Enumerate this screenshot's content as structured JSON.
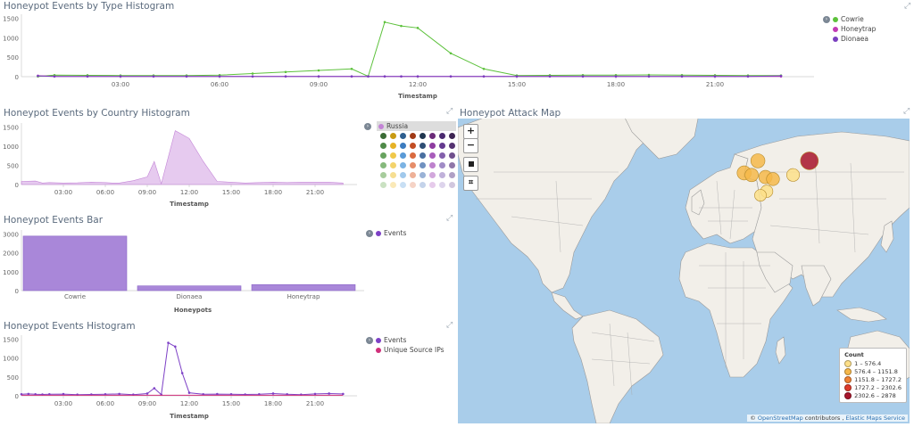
{
  "colors": {
    "cowrie": "#5cc13b",
    "honeytrap": "#c23ab4",
    "dionaea": "#7a3fbf",
    "russia": "#c384d6",
    "bar": "#a987d9",
    "events": "#7d40c6",
    "unique": "#d02f7a"
  },
  "panel1": {
    "title": "Honeypot Events by Type Histogram",
    "xlabel": "Timestamp",
    "legend": [
      {
        "label": "Cowrie",
        "color": "#5cc13b"
      },
      {
        "label": "Honeytrap",
        "color": "#c23ab4"
      },
      {
        "label": "Dionaea",
        "color": "#7a3fbf"
      }
    ]
  },
  "panel2": {
    "title": "Honeypot Events by Country Histogram",
    "xlabel": "Timestamp",
    "legend_label": "Russia",
    "palette": [
      "#3a6b35",
      "#c89a12",
      "#2d5e8f",
      "#a03a16",
      "#20364f",
      "#6b2b79",
      "#4a2a6f",
      "#3d2552",
      "#4f8a48",
      "#e6b226",
      "#3d7cbf",
      "#c24e24",
      "#2e4e75",
      "#8e3ca0",
      "#643a8f",
      "#553371",
      "#68a35f",
      "#f0c84a",
      "#5a9ad6",
      "#d96b40",
      "#4a6fa0",
      "#a85dbb",
      "#8360ac",
      "#70508d",
      "#86b97c",
      "#f3d36c",
      "#7cb3e3",
      "#e58d6a",
      "#7091c0",
      "#be82cd",
      "#a08bc6",
      "#8f76a8",
      "#a7cc9c",
      "#f6de92",
      "#a1c9ec",
      "#eeb198",
      "#9ab2d6",
      "#d2a7dc",
      "#c0b1da",
      "#b0a0c5",
      "#cae1c2",
      "#fae9b8",
      "#c8dff4",
      "#f5d3c6",
      "#c4d3ea",
      "#e6cbeb",
      "#ddd4ec",
      "#d1c7de"
    ]
  },
  "panel3": {
    "title": "Honeypot Events Bar",
    "xlabel": "Honeypots",
    "legend_label": "Events"
  },
  "panel4": {
    "title": "Honeypot Events Histogram",
    "xlabel": "Timestamp",
    "legend": [
      {
        "label": "Events",
        "color": "#7d40c6"
      },
      {
        "label": "Unique Source IPs",
        "color": "#d02f7a"
      }
    ]
  },
  "map": {
    "title": "Honeypot Attack Map",
    "legend_title": "Count",
    "legend": [
      {
        "label": "1 – 576.4",
        "color": "#fde08a"
      },
      {
        "label": "576.4 – 1151.8",
        "color": "#f6b84a"
      },
      {
        "label": "1151.8 – 1727.2",
        "color": "#ef8234"
      },
      {
        "label": "1727.2 – 2302.6",
        "color": "#dd3b2c"
      },
      {
        "label": "2302.6 – 2878",
        "color": "#a8152c"
      }
    ],
    "attribution_pre": "© ",
    "attribution_osm": "OpenStreetMap",
    "attribution_mid": " contributors , ",
    "attribution_ems": "Elastic Maps Service",
    "buttons": {
      "zoom_in": "+",
      "zoom_out": "−"
    }
  },
  "chart_data": [
    {
      "type": "line",
      "title": "Honeypot Events by Type Histogram",
      "xlabel": "Timestamp",
      "ylabel": "",
      "x_ticks": [
        "03:00",
        "06:00",
        "09:00",
        "12:00",
        "15:00",
        "18:00",
        "21:00"
      ],
      "y_ticks": [
        0,
        500,
        1000,
        1500
      ],
      "ylim": [
        0,
        1600
      ],
      "x": [
        0.5,
        1,
        2,
        3,
        4,
        5,
        6,
        7,
        8,
        9,
        10,
        10.5,
        11,
        11.5,
        12,
        13,
        14,
        15,
        16,
        17,
        18,
        19,
        20,
        21,
        22,
        23
      ],
      "series": [
        {
          "name": "Cowrie",
          "values": [
            5,
            40,
            35,
            30,
            30,
            30,
            40,
            80,
            120,
            160,
            200,
            10,
            1400,
            1300,
            1250,
            600,
            200,
            30,
            35,
            40,
            40,
            45,
            40,
            35,
            30,
            30
          ]
        },
        {
          "name": "Honeytrap",
          "values": [
            25,
            5,
            5,
            5,
            5,
            5,
            5,
            5,
            5,
            5,
            5,
            5,
            5,
            5,
            5,
            5,
            5,
            5,
            5,
            5,
            5,
            5,
            5,
            5,
            5,
            5
          ]
        },
        {
          "name": "Dionaea",
          "values": [
            20,
            8,
            8,
            8,
            8,
            8,
            8,
            8,
            8,
            8,
            8,
            8,
            8,
            8,
            8,
            8,
            8,
            8,
            8,
            8,
            8,
            8,
            8,
            8,
            8,
            20
          ]
        }
      ],
      "legend_position": "right"
    },
    {
      "type": "area",
      "title": "Honeypot Events by Country Histogram",
      "xlabel": "Timestamp",
      "x_ticks": [
        "03:00",
        "06:00",
        "09:00",
        "12:00",
        "15:00",
        "18:00",
        "21:00"
      ],
      "y_ticks": [
        0,
        500,
        1000,
        1500
      ],
      "ylim": [
        0,
        1600
      ],
      "x": [
        0,
        1,
        1.5,
        2,
        3,
        4,
        5,
        6,
        6.5,
        7,
        8,
        9,
        9.5,
        10,
        11,
        11.5,
        12,
        13,
        14,
        15,
        16,
        17,
        18,
        19,
        20,
        21,
        22,
        23
      ],
      "series": [
        {
          "name": "Russia",
          "values": [
            80,
            90,
            40,
            50,
            40,
            45,
            60,
            50,
            40,
            40,
            100,
            200,
            600,
            20,
            1400,
            1300,
            1200,
            600,
            80,
            60,
            40,
            50,
            60,
            50,
            60,
            60,
            60,
            40
          ]
        }
      ],
      "legend_position": "right"
    },
    {
      "type": "bar",
      "title": "Honeypot Events Bar",
      "xlabel": "Honeypots",
      "categories": [
        "Cowrie",
        "Dionaea",
        "Honeytrap"
      ],
      "values": [
        2878,
        250,
        320
      ],
      "y_ticks": [
        0,
        1000,
        2000,
        3000
      ],
      "ylim": [
        0,
        3200
      ],
      "series": [
        {
          "name": "Events",
          "values": [
            2878,
            250,
            320
          ]
        }
      ],
      "legend_position": "right"
    },
    {
      "type": "line",
      "title": "Honeypot Events Histogram",
      "xlabel": "Timestamp",
      "x_ticks": [
        "03:00",
        "06:00",
        "09:00",
        "12:00",
        "15:00",
        "18:00",
        "21:00"
      ],
      "y_ticks": [
        0,
        500,
        1000,
        1500
      ],
      "ylim": [
        0,
        1600
      ],
      "x": [
        0,
        0.5,
        1,
        1.5,
        2,
        3,
        4,
        5,
        6,
        7,
        8,
        9,
        9.5,
        10,
        10.5,
        11,
        11.5,
        12,
        13,
        14,
        15,
        16,
        17,
        18,
        19,
        20,
        21,
        22,
        23
      ],
      "series": [
        {
          "name": "Events",
          "values": [
            40,
            50,
            40,
            35,
            40,
            45,
            30,
            35,
            40,
            50,
            30,
            60,
            200,
            30,
            1400,
            1300,
            600,
            80,
            40,
            45,
            40,
            35,
            40,
            60,
            40,
            30,
            50,
            60,
            50
          ]
        },
        {
          "name": "Unique Source IPs",
          "values": [
            15,
            15,
            15,
            15,
            15,
            15,
            15,
            15,
            15,
            15,
            15,
            15,
            15,
            15,
            15,
            15,
            15,
            15,
            15,
            15,
            15,
            15,
            15,
            15,
            15,
            15,
            15,
            15,
            15
          ]
        }
      ],
      "legend_position": "right"
    },
    {
      "type": "scatter",
      "title": "Honeypot Attack Map",
      "points": [
        {
          "lon": 103,
          "lat": 63,
          "value": 2878
        },
        {
          "lon": 62,
          "lat": 63,
          "value": 1000
        },
        {
          "lon": 51,
          "lat": 57,
          "value": 1000
        },
        {
          "lon": 57,
          "lat": 56,
          "value": 700
        },
        {
          "lon": 68,
          "lat": 55,
          "value": 700
        },
        {
          "lon": 74,
          "lat": 54,
          "value": 600
        },
        {
          "lon": 90,
          "lat": 56,
          "value": 550
        },
        {
          "lon": 69,
          "lat": 48,
          "value": 400
        },
        {
          "lon": 64,
          "lat": 46,
          "value": 300
        }
      ],
      "legend_title": "Count"
    }
  ]
}
